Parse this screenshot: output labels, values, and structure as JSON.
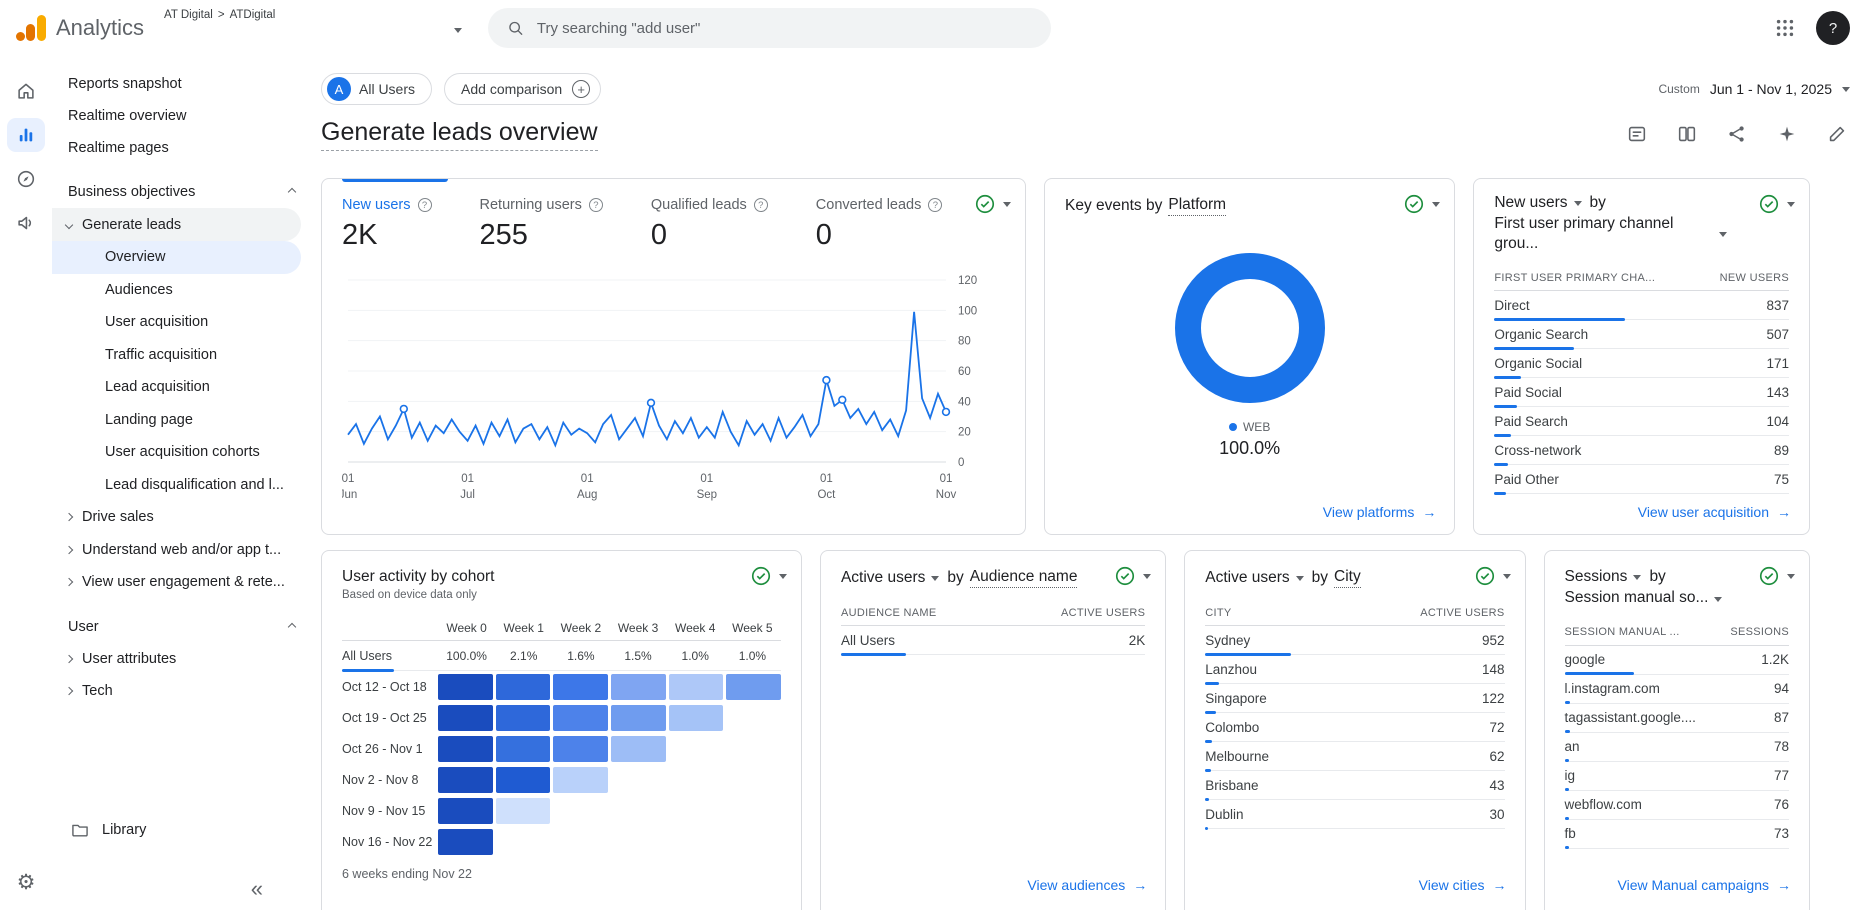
{
  "header": {
    "app_name": "Analytics",
    "org": "AT Digital",
    "crumb_sep": ">",
    "property": "ATDigital",
    "search_placeholder": "Try searching \"add user\""
  },
  "nav": {
    "top": [
      "Reports snapshot",
      "Realtime overview",
      "Realtime pages"
    ],
    "business_section": "Business objectives",
    "generate_leads": "Generate leads",
    "generate_children": [
      "Overview",
      "Audiences",
      "User acquisition",
      "Traffic acquisition",
      "Lead acquisition",
      "Landing page",
      "User acquisition cohorts",
      "Lead disqualification and l..."
    ],
    "collapsed_items": [
      "Drive sales",
      "Understand web and/or app t...",
      "View user engagement & rete..."
    ],
    "user_section": "User",
    "user_items": [
      "User attributes",
      "Tech"
    ],
    "library": "Library"
  },
  "controls": {
    "segment_avatar": "A",
    "segment_label": "All Users",
    "add_comparison": "Add comparison",
    "date_preset": "Custom",
    "date_range": "Jun 1 - Nov 1, 2025",
    "page_title": "Generate leads overview"
  },
  "cards": {
    "metrics": {
      "tabs": [
        {
          "label": "New users",
          "value": "2K"
        },
        {
          "label": "Returning users",
          "value": "255"
        },
        {
          "label": "Qualified leads",
          "value": "0"
        },
        {
          "label": "Converted leads",
          "value": "0"
        }
      ],
      "chart": {
        "type": "line",
        "ylim": [
          0,
          120
        ],
        "y_ticks": [
          120,
          100,
          80,
          60,
          40,
          20,
          0
        ],
        "x_ticks": [
          {
            "day": "01",
            "month": "Jun",
            "index": 0
          },
          {
            "day": "01",
            "month": "Jul",
            "index": 15
          },
          {
            "day": "01",
            "month": "Aug",
            "index": 30
          },
          {
            "day": "01",
            "month": "Sep",
            "index": 45
          },
          {
            "day": "01",
            "month": "Oct",
            "index": 60
          },
          {
            "day": "01",
            "month": "Nov",
            "index": 75
          }
        ],
        "values": [
          18,
          25,
          12,
          22,
          30,
          15,
          24,
          35,
          16,
          26,
          14,
          24,
          19,
          28,
          20,
          14,
          24,
          12,
          26,
          17,
          28,
          13,
          22,
          25,
          15,
          23,
          11,
          26,
          18,
          22,
          19,
          13,
          25,
          31,
          15,
          22,
          29,
          17,
          39,
          24,
          15,
          27,
          19,
          29,
          16,
          23,
          16,
          33,
          20,
          11,
          27,
          18,
          25,
          14,
          29,
          16,
          23,
          31,
          17,
          25,
          54,
          37,
          41,
          29,
          35,
          25,
          33,
          21,
          28,
          17,
          34,
          99,
          42,
          29,
          45,
          33
        ],
        "marker_indices": [
          7,
          38,
          60,
          62,
          75
        ],
        "line_color": "#1a73e8"
      }
    },
    "platform": {
      "title_prefix": "Key events by",
      "dimension": "Platform",
      "slices": [
        {
          "label": "WEB",
          "pct": "100.0%",
          "value": 100,
          "color": "#1a73e8"
        }
      ],
      "link": "View platforms"
    },
    "channels": {
      "metric": "New users",
      "by": "by",
      "dimension": "First user primary channel grou...",
      "col_dim": "FIRST USER PRIMARY CHA...",
      "col_val": "NEW USERS",
      "rows": [
        {
          "label": "Direct",
          "value": 837,
          "display": "837"
        },
        {
          "label": "Organic Search",
          "value": 507,
          "display": "507"
        },
        {
          "label": "Organic Social",
          "value": 171,
          "display": "171"
        },
        {
          "label": "Paid Social",
          "value": 143,
          "display": "143"
        },
        {
          "label": "Paid Search",
          "value": 104,
          "display": "104"
        },
        {
          "label": "Cross-network",
          "value": 89,
          "display": "89"
        },
        {
          "label": "Paid Other",
          "value": 75,
          "display": "75"
        }
      ],
      "link": "View user acquisition"
    },
    "cohort": {
      "title": "User activity by cohort",
      "subtitle": "Based on device data only",
      "week_headers": [
        "Week 0",
        "Week 1",
        "Week 2",
        "Week 3",
        "Week 4",
        "Week 5"
      ],
      "summary": {
        "label": "All Users",
        "values": [
          "100.0%",
          "2.1%",
          "1.6%",
          "1.5%",
          "1.0%",
          "1.0%"
        ]
      },
      "rows": [
        {
          "label": "Oct 12 - Oct 18",
          "cells": [
            "#1a4cbe",
            "#2e68da",
            "#3d77e8",
            "#7fa5f2",
            "#aec8f8",
            "#6f9cef"
          ]
        },
        {
          "label": "Oct 19 - Oct 25",
          "cells": [
            "#1a4cbe",
            "#2e68da",
            "#4d82ea",
            "#6f9cef",
            "#a5c3f7"
          ]
        },
        {
          "label": "Oct 26 - Nov 1",
          "cells": [
            "#1a4cbe",
            "#3570de",
            "#4d82ea",
            "#9dbdf6"
          ]
        },
        {
          "label": "Nov 2 - Nov 8",
          "cells": [
            "#1a4cbe",
            "#1f5bd2",
            "#b9d1fa"
          ]
        },
        {
          "label": "Nov 9 - Nov 15",
          "cells": [
            "#1a4cbe",
            "#cfe0fc"
          ]
        },
        {
          "label": "Nov 16 - Nov 22",
          "cells": [
            "#1a4cbe"
          ]
        }
      ],
      "footer": "6 weeks ending Nov 22"
    },
    "audience": {
      "metric": "Active users",
      "by": "by",
      "dimension": "Audience name",
      "col_dim": "AUDIENCE NAME",
      "col_val": "ACTIVE USERS",
      "rows": [
        {
          "label": "All Users",
          "value": 2000,
          "display": "2K"
        }
      ],
      "link": "View audiences"
    },
    "city": {
      "metric": "Active users",
      "by": "by",
      "dimension": "City",
      "col_dim": "CITY",
      "col_val": "ACTIVE USERS",
      "rows": [
        {
          "label": "Sydney",
          "value": 952,
          "display": "952"
        },
        {
          "label": "Lanzhou",
          "value": 148,
          "display": "148"
        },
        {
          "label": "Singapore",
          "value": 122,
          "display": "122"
        },
        {
          "label": "Colombo",
          "value": 72,
          "display": "72"
        },
        {
          "label": "Melbourne",
          "value": 62,
          "display": "62"
        },
        {
          "label": "Brisbane",
          "value": 43,
          "display": "43"
        },
        {
          "label": "Dublin",
          "value": 30,
          "display": "30"
        }
      ],
      "link": "View cities"
    },
    "sessions": {
      "metric": "Sessions",
      "by": "by",
      "dimension": "Session manual so...",
      "col_dim": "SESSION MANUAL ...",
      "col_val": "SESSIONS",
      "rows": [
        {
          "label": "google",
          "value": 1200,
          "display": "1.2K"
        },
        {
          "label": "l.instagram.com",
          "value": 94,
          "display": "94"
        },
        {
          "label": "tagassistant.google....",
          "value": 87,
          "display": "87"
        },
        {
          "label": "an",
          "value": 78,
          "display": "78"
        },
        {
          "label": "ig",
          "value": 77,
          "display": "77"
        },
        {
          "label": "webflow.com",
          "value": 76,
          "display": "76"
        },
        {
          "label": "fb",
          "value": 73,
          "display": "73"
        }
      ],
      "link": "View Manual campaigns"
    }
  }
}
